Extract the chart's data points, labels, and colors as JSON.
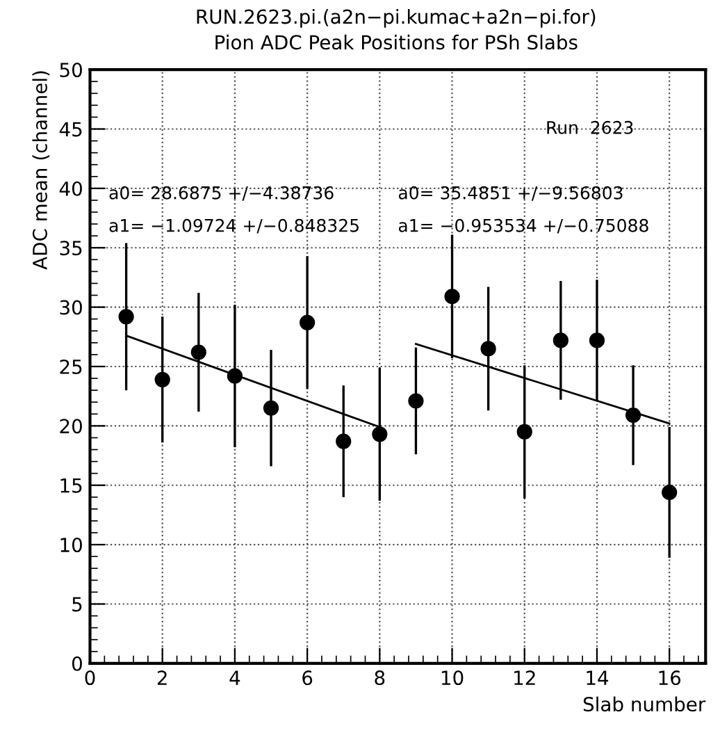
{
  "chart_data": {
    "type": "scatter",
    "title": "RUN.2623.pi.(a2n−pi.kumac+a2n−pi.for)",
    "subtitle": "Pion ADC Peak Positions for PSh Slabs",
    "xlabel": "Slab number",
    "ylabel": "ADC mean (channel)",
    "annotations": [
      "Run  2623",
      "a0= 28.6875 +/−4.38736",
      "a1= −1.09724 +/−0.848325",
      "a0= 35.4851 +/−9.56803",
      "a1= −0.953534 +/−0.75088"
    ],
    "series": [
      {
        "color": "#000000",
        "marker": "circle",
        "x": [
          1,
          2,
          3,
          4,
          5,
          6,
          7,
          8,
          9,
          10,
          11,
          12,
          13,
          14,
          15,
          16
        ],
        "values": [
          29.2,
          23.9,
          26.2,
          24.2,
          21.5,
          28.7,
          18.7,
          19.3,
          22.1,
          30.9,
          26.5,
          19.5,
          27.2,
          27.2,
          20.9,
          14.4
        ],
        "errors": [
          6.2,
          5.3,
          5.0,
          6.0,
          4.9,
          5.6,
          4.7,
          5.6,
          4.5,
          5.2,
          5.2,
          5.6,
          5.0,
          5.1,
          4.2,
          5.5
        ]
      },
      {
        "type": "line",
        "color": "#000000",
        "x": [
          1,
          8
        ],
        "values": [
          27.6,
          19.9
        ]
      },
      {
        "type": "line",
        "color": "#000000",
        "x": [
          9,
          16
        ],
        "values": [
          26.9,
          20.2
        ]
      }
    ],
    "xlim": [
      0,
      17
    ],
    "xticks": [
      0,
      2,
      4,
      6,
      8,
      10,
      12,
      14,
      16
    ],
    "ylim": [
      0,
      50
    ],
    "yticks": [
      0,
      5,
      10,
      15,
      20,
      25,
      30,
      35,
      40,
      45,
      50
    ],
    "grid": true,
    "legend": false
  }
}
